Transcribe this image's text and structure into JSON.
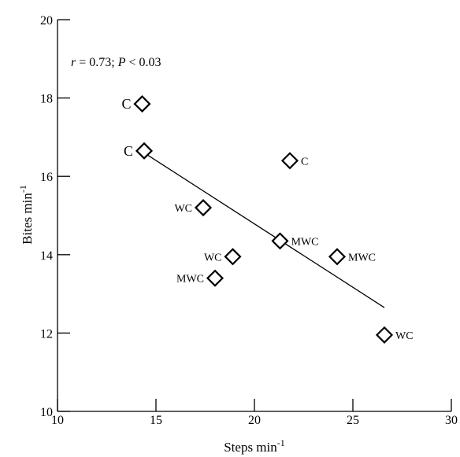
{
  "chart_data": {
    "type": "scatter",
    "xlabel": "Steps min",
    "xlabel_sup": "-1",
    "ylabel": "Bites min",
    "ylabel_sup": "-1",
    "xlim": [
      10,
      30
    ],
    "ylim": [
      10,
      20
    ],
    "xticks": [
      10,
      15,
      20,
      25,
      30
    ],
    "yticks": [
      10,
      12,
      14,
      16,
      18,
      20
    ],
    "grid": false,
    "annotation": {
      "r_sym": "r",
      "r_text": " = 0.73; ",
      "p_sym": "P",
      "p_text": " < 0.03"
    },
    "points": [
      {
        "x": 14.3,
        "y": 17.85,
        "label": "C"
      },
      {
        "x": 14.4,
        "y": 16.65,
        "label": "C"
      },
      {
        "x": 21.8,
        "y": 16.4,
        "label": "C"
      },
      {
        "x": 17.4,
        "y": 15.2,
        "label": "WC"
      },
      {
        "x": 21.3,
        "y": 14.35,
        "label": "MWC"
      },
      {
        "x": 24.2,
        "y": 13.95,
        "label": "MWC"
      },
      {
        "x": 18.9,
        "y": 13.95,
        "label": "WC"
      },
      {
        "x": 18.0,
        "y": 13.4,
        "label": "MWC"
      },
      {
        "x": 26.6,
        "y": 11.95,
        "label": "WC"
      }
    ],
    "regression": {
      "x": [
        14.4,
        26.6
      ],
      "y": [
        16.6,
        12.65
      ]
    }
  }
}
